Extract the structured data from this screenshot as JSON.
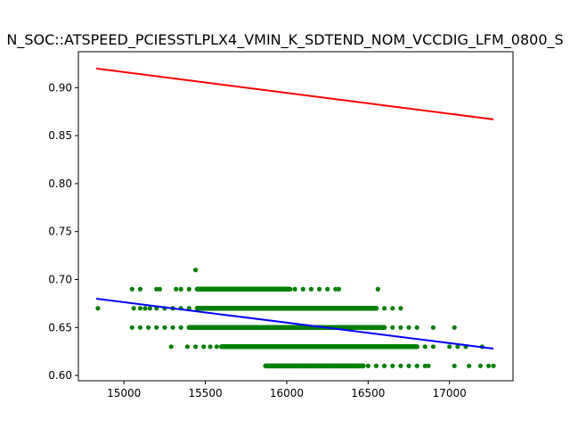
{
  "chart_data": {
    "type": "scatter",
    "title": "N_SOC::ATSPEED_PCIESSTLPLX4_VMIN_K_SDTEND_NOM_VCCDIG_LFM_0800_S",
    "xlabel": "",
    "ylabel": "",
    "xlim": [
      14720,
      17390
    ],
    "ylim": [
      0.5945,
      0.9375
    ],
    "grid": false,
    "x_ticks": [
      15000,
      15500,
      16000,
      16500,
      17000
    ],
    "x_tick_labels": [
      "15000",
      "15500",
      "16000",
      "16500",
      "17000"
    ],
    "y_ticks": [
      0.6,
      0.65,
      0.7,
      0.75,
      0.8,
      0.85,
      0.9
    ],
    "y_tick_labels": [
      "0.60",
      "0.65",
      "0.70",
      "0.75",
      "0.80",
      "0.85",
      "0.90"
    ],
    "colors": {
      "points": "#008000",
      "red_line": "#ff0000",
      "blue_line": "#0000ff"
    },
    "lines": [
      {
        "color": "red",
        "x": [
          14830,
          17270
        ],
        "y": [
          0.92,
          0.867
        ]
      },
      {
        "color": "blue",
        "x": [
          14830,
          17270
        ],
        "y": [
          0.68,
          0.628
        ]
      }
    ],
    "scatter_levels": [
      {
        "y": 0.61,
        "x_dense": [
          15870,
          16470
        ],
        "x_sparse": [
          15870,
          16100,
          16200,
          16300,
          16450,
          16500,
          16550,
          16600,
          16650,
          16700,
          16750,
          16800,
          16850,
          16870,
          17030,
          17120,
          17190,
          17240,
          17270
        ]
      },
      {
        "y": 0.63,
        "x_dense": [
          15600,
          16800
        ],
        "x_sparse": [
          15290,
          15390,
          15440,
          15490,
          15530,
          15570,
          15600,
          16800,
          16850,
          16900,
          17000,
          17050,
          17100,
          17200
        ]
      },
      {
        "y": 0.65,
        "x_dense": [
          15400,
          16600
        ],
        "x_sparse": [
          15050,
          15100,
          15150,
          15200,
          15250,
          15300,
          15350,
          15400,
          16600,
          16650,
          16700,
          16750,
          16800,
          16900,
          17030
        ]
      },
      {
        "y": 0.67,
        "x_dense": [
          15450,
          16550
        ],
        "x_sparse": [
          14840,
          15060,
          15100,
          15130,
          15160,
          15200,
          15250,
          15300,
          15350,
          15400,
          16550,
          16600,
          16650,
          16700
        ]
      },
      {
        "y": 0.69,
        "x_dense": [
          15450,
          16020
        ],
        "x_sparse": [
          15050,
          15100,
          15200,
          15220,
          15320,
          15350,
          15400,
          16050,
          16100,
          16150,
          16200,
          16250,
          16300,
          16320,
          16560
        ]
      },
      {
        "y": 0.71,
        "x_dense": [
          15440,
          15440
        ],
        "x_sparse": [
          15440
        ]
      }
    ]
  }
}
